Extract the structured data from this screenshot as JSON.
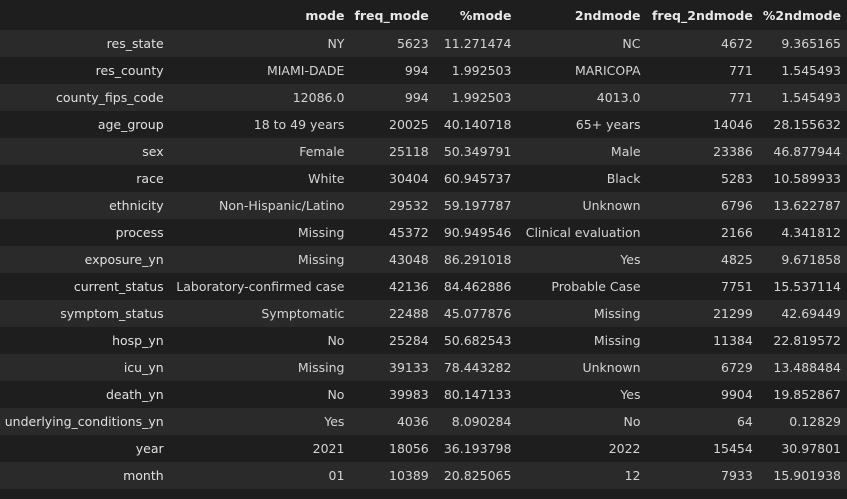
{
  "columns": [
    "",
    "mode",
    "freq_mode",
    "%mode",
    "2ndmode",
    "freq_2ndmode",
    "%2ndmode"
  ],
  "rows": [
    {
      "label": "res_state",
      "cells": [
        "NY",
        "5623",
        "11.271474",
        "NC",
        "4672",
        "9.365165"
      ]
    },
    {
      "label": "res_county",
      "cells": [
        "MIAMI-DADE",
        "994",
        "1.992503",
        "MARICOPA",
        "771",
        "1.545493"
      ]
    },
    {
      "label": "county_fips_code",
      "cells": [
        "12086.0",
        "994",
        "1.992503",
        "4013.0",
        "771",
        "1.545493"
      ]
    },
    {
      "label": "age_group",
      "cells": [
        "18 to 49 years",
        "20025",
        "40.140718",
        "65+ years",
        "14046",
        "28.155632"
      ]
    },
    {
      "label": "sex",
      "cells": [
        "Female",
        "25118",
        "50.349791",
        "Male",
        "23386",
        "46.877944"
      ]
    },
    {
      "label": "race",
      "cells": [
        "White",
        "30404",
        "60.945737",
        "Black",
        "5283",
        "10.589933"
      ]
    },
    {
      "label": "ethnicity",
      "cells": [
        "Non-Hispanic/Latino",
        "29532",
        "59.197787",
        "Unknown",
        "6796",
        "13.622787"
      ]
    },
    {
      "label": "process",
      "cells": [
        "Missing",
        "45372",
        "90.949546",
        "Clinical evaluation",
        "2166",
        "4.341812"
      ]
    },
    {
      "label": "exposure_yn",
      "cells": [
        "Missing",
        "43048",
        "86.291018",
        "Yes",
        "4825",
        "9.671858"
      ]
    },
    {
      "label": "current_status",
      "cells": [
        "Laboratory-confirmed case",
        "42136",
        "84.462886",
        "Probable Case",
        "7751",
        "15.537114"
      ]
    },
    {
      "label": "symptom_status",
      "cells": [
        "Symptomatic",
        "22488",
        "45.077876",
        "Missing",
        "21299",
        "42.69449"
      ]
    },
    {
      "label": "hosp_yn",
      "cells": [
        "No",
        "25284",
        "50.682543",
        "Missing",
        "11384",
        "22.819572"
      ]
    },
    {
      "label": "icu_yn",
      "cells": [
        "Missing",
        "39133",
        "78.443282",
        "Unknown",
        "6729",
        "13.488484"
      ]
    },
    {
      "label": "death_yn",
      "cells": [
        "No",
        "39983",
        "80.147133",
        "Yes",
        "9904",
        "19.852867"
      ]
    },
    {
      "label": "underlying_conditions_yn",
      "cells": [
        "Yes",
        "4036",
        "8.090284",
        "No",
        "64",
        "0.12829"
      ]
    },
    {
      "label": "year",
      "cells": [
        "2021",
        "18056",
        "36.193798",
        "2022",
        "15454",
        "30.97801"
      ]
    },
    {
      "label": "month",
      "cells": [
        "01",
        "10389",
        "20.825065",
        "12",
        "7933",
        "15.901938"
      ]
    }
  ],
  "colors": {
    "background": "#1e1e1e",
    "row_alt": "#2a2a2a",
    "text": "#d4d4d4"
  }
}
